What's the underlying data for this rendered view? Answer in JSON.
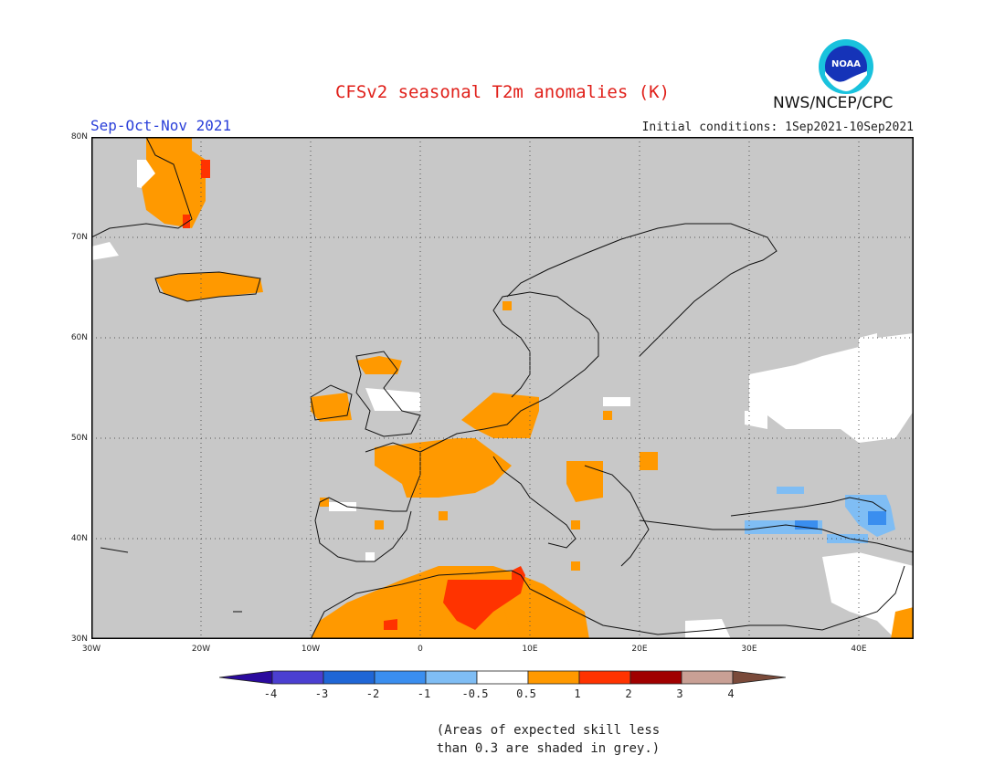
{
  "header": {
    "title": "CFSv2 seasonal T2m anomalies (K)",
    "period": "Sep-Oct-Nov 2021",
    "initial_conditions": "Initial conditions: 1Sep2021-10Sep2021",
    "organization": "NWS/NCEP/CPC",
    "logo_text": "NOAA"
  },
  "map": {
    "region": "Europe",
    "projection": "lat-lon",
    "lat_range": [
      30,
      80
    ],
    "lon_range": [
      -30,
      45
    ],
    "lat_labels": [
      "80N",
      "70N",
      "60N",
      "50N",
      "40N",
      "30N"
    ],
    "lon_labels": [
      "30W",
      "20W",
      "10W",
      "0",
      "10E",
      "20E",
      "30E",
      "40E"
    ],
    "gridlines": "dotted",
    "no_skill_color": "#c8c8c8",
    "no_skill_rule": "skill < 0.3 shaded grey",
    "regions": [
      {
        "area": "Greenland east coast",
        "anomaly": "0.5 to 1",
        "color": "#ff9900"
      },
      {
        "area": "Iceland",
        "anomaly": "0.5 to 1",
        "color": "#ff9900"
      },
      {
        "area": "Ireland / Scotland",
        "anomaly": "0.5 to 1",
        "color": "#ff9900"
      },
      {
        "area": "France / Germany / Alps",
        "anomaly": "0.5 to 1",
        "color": "#ff9900"
      },
      {
        "area": "North Africa (Algeria / Tunisia)",
        "anomaly": "1 to 2",
        "color": "#ff3300"
      },
      {
        "area": "Black Sea / Caspian / Turkey",
        "anomaly": "-1 to -0.5",
        "color": "#66aaff"
      },
      {
        "area": "Western Russia",
        "anomaly": "-0.5 to 0.5",
        "color": "#ffffff"
      }
    ]
  },
  "colorbar": {
    "labels": [
      "-4",
      "-3",
      "-2",
      "-1",
      "-0.5",
      "0.5",
      "1",
      "2",
      "3",
      "4"
    ],
    "colors": [
      "#2a0a9e",
      "#4b3fd1",
      "#1f66d6",
      "#3a8eef",
      "#7fbdf4",
      "#ffffff",
      "#ff9900",
      "#ff3300",
      "#a00000",
      "#c9a095",
      "#7a4a3a"
    ]
  },
  "footnote": "(Areas of expected skill less\nthan 0.3 are shaded in grey.)"
}
